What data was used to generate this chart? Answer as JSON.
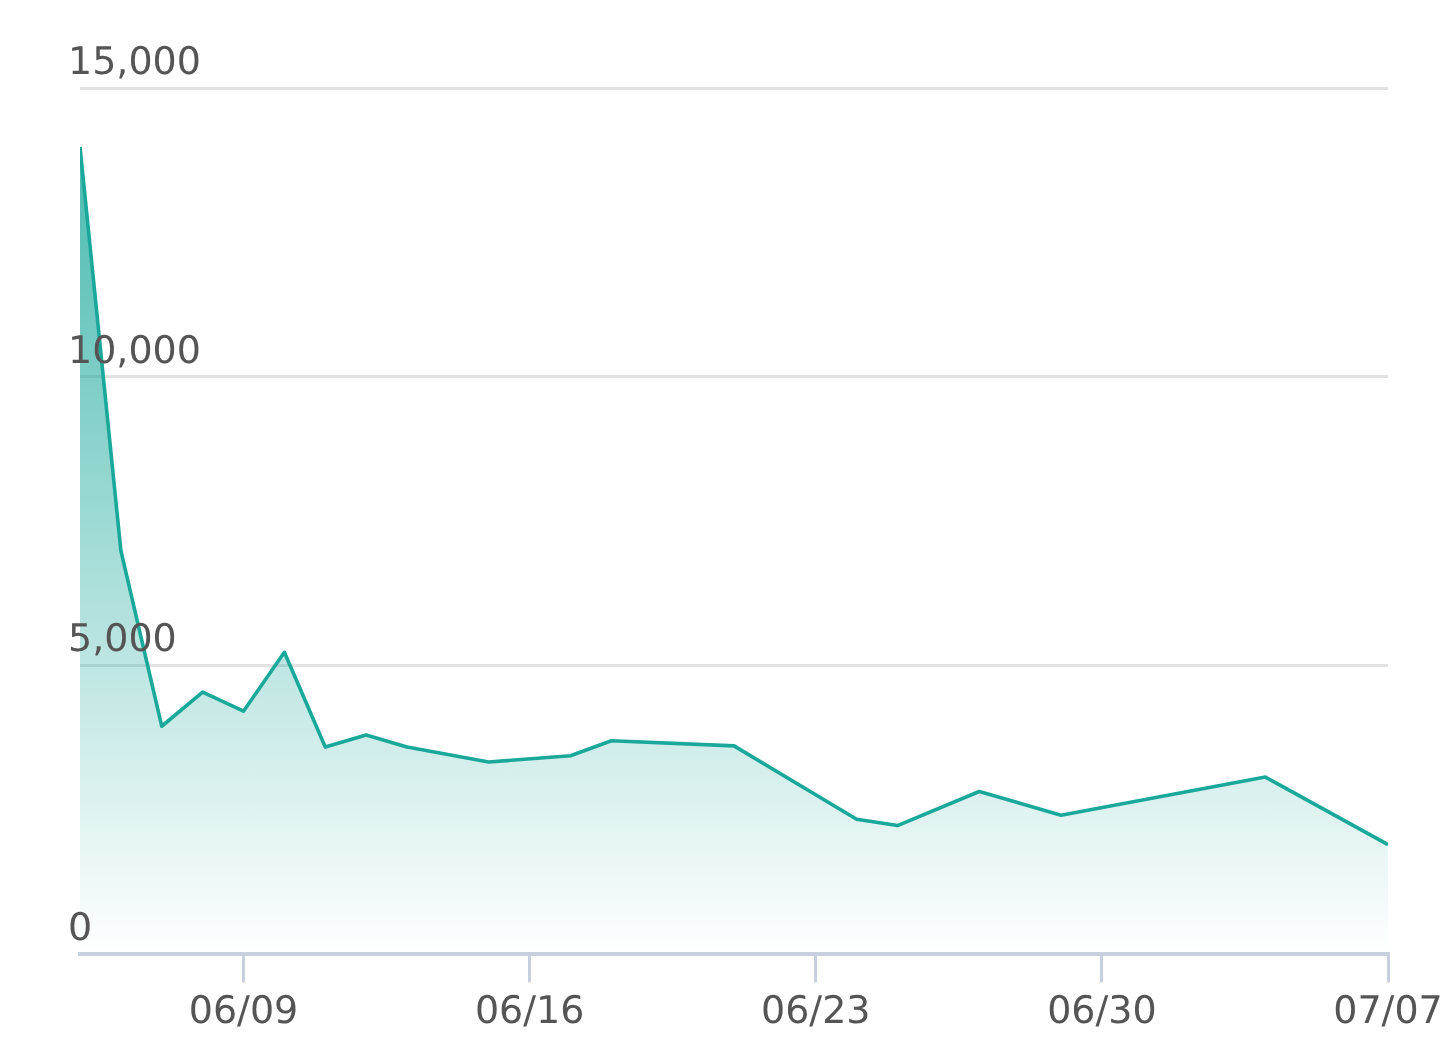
{
  "chart_data": {
    "type": "area",
    "x": [
      "--06-05",
      "--06-06",
      "--06-07",
      "--06-08",
      "--06-09",
      "--06-10",
      "--06-11",
      "--06-12",
      "--06-13",
      "--06-15",
      "--06-17",
      "--06-18",
      "--06-21",
      "--06-24",
      "--06-25",
      "--06-27",
      "--06-29",
      "--07-04",
      "--07-07"
    ],
    "series": [
      {
        "color": "#1aa89b",
        "values": [
          13980,
          6990,
          3950,
          4540,
          4210,
          5230,
          3590,
          3800,
          3590,
          3330,
          3440,
          3700,
          3610,
          2340,
          2230,
          2820,
          2410,
          3070,
          1900
        ]
      }
    ],
    "xlim": [
      "--06-05",
      "--07-07"
    ],
    "xticks": [
      {
        "value": "--06-09",
        "label": "06/09"
      },
      {
        "value": "--06-16",
        "label": "06/16"
      },
      {
        "value": "--06-23",
        "label": "06/23"
      },
      {
        "value": "--06-30",
        "label": "06/30"
      },
      {
        "value": "--07-07",
        "label": "07/07"
      }
    ],
    "ylim": [
      0,
      15000
    ],
    "yticks": [
      0,
      {
        "value": 5000,
        "label": "5,000"
      },
      {
        "value": 10000,
        "label": "10,000"
      },
      {
        "value": 15000,
        "label": "15,000"
      }
    ],
    "grid": "y",
    "legend": false,
    "marker": "none",
    "line_style": "solid"
  }
}
